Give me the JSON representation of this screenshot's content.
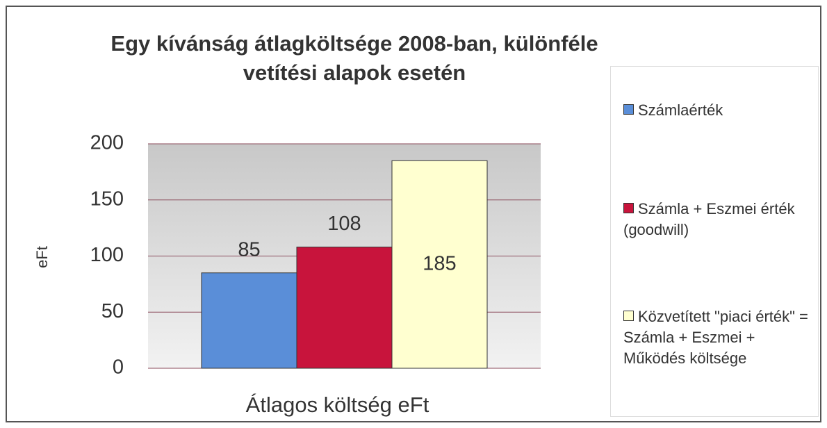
{
  "chart_data": {
    "type": "bar",
    "title": "Egy kívánság átlagköltsége 2008-ban, különféle vetítési alapok esetén",
    "y_label": "eFt",
    "categories": [
      "Átlagos költség eFt"
    ],
    "series": [
      {
        "name": "Számlaérték",
        "color": "#5a8ed8",
        "values": [
          85
        ]
      },
      {
        "name": "Számla + Eszmei érték (goodwill)",
        "color": "#c8143c",
        "values": [
          108
        ]
      },
      {
        "name": "Közvetített \"piaci érték\" = Számla + Eszmei + Működés költsége",
        "color": "#ffffd0",
        "values": [
          185
        ]
      }
    ],
    "ylim": [
      0,
      200
    ],
    "yticks": [
      0,
      50,
      100,
      150,
      200
    ],
    "grid": true,
    "legend": "right"
  }
}
